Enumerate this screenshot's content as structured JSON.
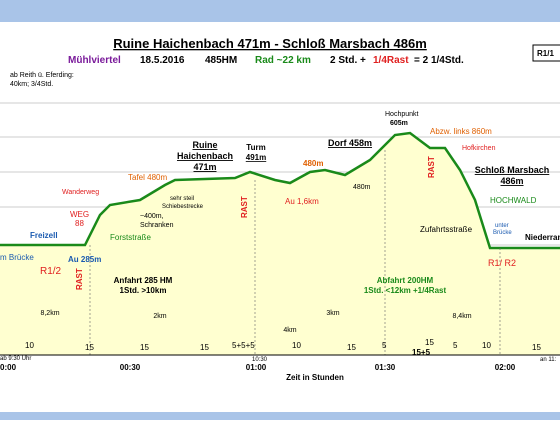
{
  "header": {
    "title": "Ruine Haichenbach 471m - Schloß Marsbach 486m",
    "region": "Mühlviertel",
    "date": "18.5.2016",
    "climb": "485HM",
    "bike": "Rad ~22 km",
    "time_a": "2 Std. +",
    "time_rest": "1/4Rast",
    "time_b": "= 2 1/4Std.",
    "corner": "R1/1"
  },
  "notes": {
    "start_a": "ab Reith ü. Eferding:",
    "start_b": "40km; 3/4Std."
  },
  "places": {
    "freizell": "Freizell",
    "bridge": "m Brücke",
    "au": "Au 285m",
    "r12": "R1/2",
    "weg_a": "WEG",
    "weg_b": "88",
    "wanderweg": "Wanderweg",
    "forst": "Forststraße",
    "schranken_a": "~400m,",
    "schranken_b": "Schranken",
    "steil_a": "sehr steil",
    "steil_b": "Schiebestrecke",
    "tafel": "Tafel 480m",
    "ruine_a": "Ruine",
    "ruine_b": "Haichenbach",
    "ruine_c": "471m",
    "turm_a": "Turm",
    "turm_b": "491m",
    "au2": "Au 1,6km",
    "m480a": "480m",
    "dorf": "Dorf 458m",
    "m480b": "480m",
    "hoch_a": "Hochpunkt",
    "hoch_b": "605m",
    "abzw": "Abzw. links 860m",
    "hofkirchen": "Hofkirchen",
    "schloss_a": "Schloß Marsbach",
    "schloss_b": "486m",
    "hochwald": "HOCHWALD",
    "zufahrt": "Zufahrtsstraße",
    "unter_a": "unter",
    "unter_b": "Brücke",
    "nieder": "Niederran",
    "r1r2": "R1/ R2"
  },
  "rests": [
    "RAST",
    "RAST",
    "RAST"
  ],
  "summary": {
    "up_a": "Anfahrt 285 HM",
    "up_b": "1Std. >10km",
    "down_a": "Abfahrt 200HM",
    "down_b": "1Std. <12km +1/4Rast"
  },
  "distances": [
    "8,2km",
    "2km",
    "4km",
    "3km",
    "8,4km"
  ],
  "minutes": [
    "10",
    "15",
    "15",
    "15",
    "5+5+5",
    "10",
    "15",
    "5",
    "15",
    "5",
    "10",
    "15"
  ],
  "extra_minutes": "15+5",
  "time_axis": {
    "ticks": [
      "0:00",
      "00:30",
      "01:00",
      "01:30",
      "02:00"
    ],
    "start": "ab 9:30 Uhr",
    "mid": "10:30",
    "end": "an 11:",
    "label": "Zeit in Stunden"
  }
}
